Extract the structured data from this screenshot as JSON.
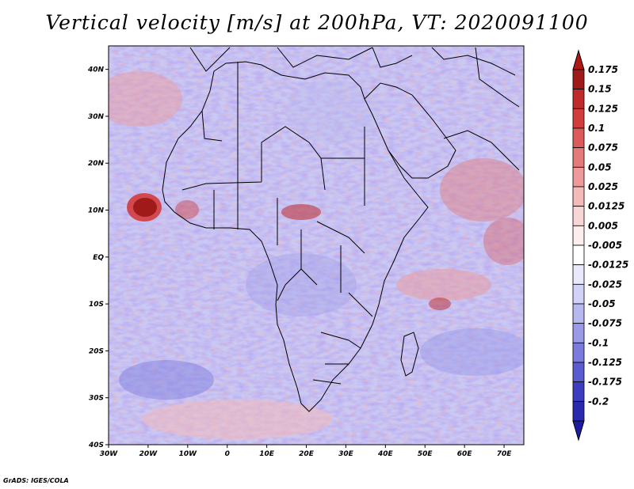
{
  "title": "Vertical velocity [m/s] at 200hPa, VT: 2020091100",
  "footer": "GrADS: IGES/COLA",
  "map": {
    "lon_range": [
      -30,
      75
    ],
    "lat_range": [
      -40,
      45
    ],
    "lon_ticks": [
      {
        "value": -30,
        "label": "30W"
      },
      {
        "value": -20,
        "label": "20W"
      },
      {
        "value": -10,
        "label": "10W"
      },
      {
        "value": 0,
        "label": "0"
      },
      {
        "value": 10,
        "label": "10E"
      },
      {
        "value": 20,
        "label": "20E"
      },
      {
        "value": 30,
        "label": "30E"
      },
      {
        "value": 40,
        "label": "40E"
      },
      {
        "value": 50,
        "label": "50E"
      },
      {
        "value": 60,
        "label": "60E"
      },
      {
        "value": 70,
        "label": "70E"
      }
    ],
    "lat_ticks": [
      {
        "value": 40,
        "label": "40N"
      },
      {
        "value": 30,
        "label": "30N"
      },
      {
        "value": 20,
        "label": "20N"
      },
      {
        "value": 10,
        "label": "10N"
      },
      {
        "value": 0,
        "label": "EQ"
      },
      {
        "value": -10,
        "label": "10S"
      },
      {
        "value": -20,
        "label": "20S"
      },
      {
        "value": -30,
        "label": "30S"
      },
      {
        "value": -40,
        "label": "40S"
      }
    ]
  },
  "colorbar": {
    "levels": [
      {
        "label": "0.175",
        "color": "#a11a1a"
      },
      {
        "label": "0.15",
        "color": "#c02a2a"
      },
      {
        "label": "0.125",
        "color": "#d13c3c"
      },
      {
        "label": "0.1",
        "color": "#dc5a5a"
      },
      {
        "label": "0.075",
        "color": "#e57a7a"
      },
      {
        "label": "0.05",
        "color": "#ee9a9a"
      },
      {
        "label": "0.025",
        "color": "#f4baba"
      },
      {
        "label": "0.0125",
        "color": "#f9d6d6"
      },
      {
        "label": "0.005",
        "color": "#fdeeee"
      },
      {
        "label": "-0.005",
        "color": "#ffffff"
      },
      {
        "label": "-0.0125",
        "color": "#e9e9fb"
      },
      {
        "label": "-0.025",
        "color": "#d2d2f6"
      },
      {
        "label": "-0.05",
        "color": "#b8b8f0"
      },
      {
        "label": "-0.075",
        "color": "#9a9ae8"
      },
      {
        "label": "-0.1",
        "color": "#7b7bde"
      },
      {
        "label": "-0.125",
        "color": "#5c5cd2"
      },
      {
        "label": "-0.175",
        "color": "#3d3dc2"
      },
      {
        "label": "-0.2",
        "color": "#2a2aae"
      }
    ],
    "top_color": "#b01818",
    "bottom_color": "#1c1ca0"
  }
}
